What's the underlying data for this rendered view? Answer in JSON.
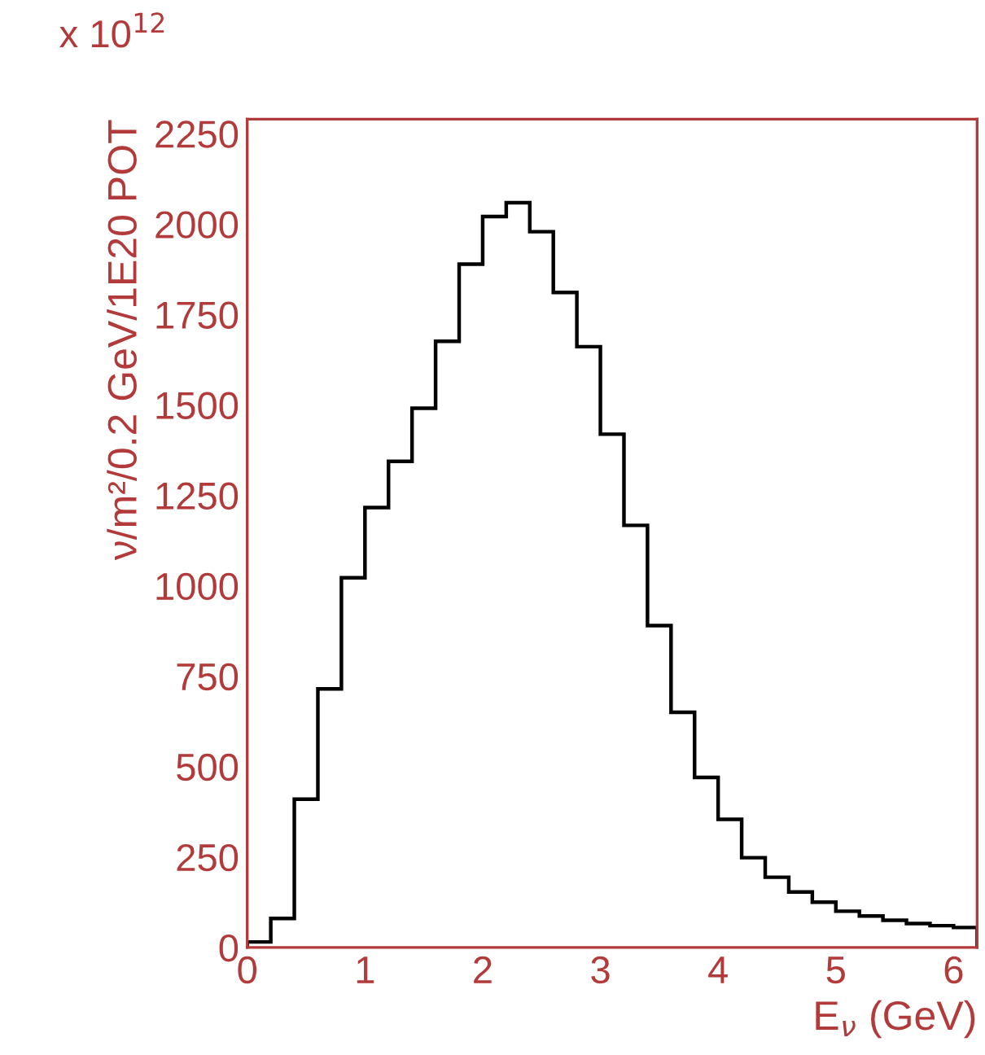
{
  "chart_data": {
    "type": "histogram",
    "bins": [
      0,
      0.2,
      0.4,
      0.6,
      0.8,
      1.0,
      1.2,
      1.4,
      1.6,
      1.8,
      2.0,
      2.2,
      2.4,
      2.6,
      2.8,
      3.0,
      3.2,
      3.4,
      3.6,
      3.8,
      4.0,
      4.2,
      4.4,
      4.6,
      4.8,
      5.0,
      5.2,
      5.4,
      5.6,
      5.8,
      6.0,
      6.2
    ],
    "values": [
      15,
      80,
      410,
      715,
      1022,
      1216,
      1344,
      1491,
      1676,
      1889,
      2021,
      2059,
      1979,
      1811,
      1661,
      1419,
      1167,
      890,
      650,
      470,
      354,
      248,
      194,
      153,
      125,
      100,
      87,
      75,
      66,
      60,
      55
    ],
    "color": "#000000",
    "xlabel": "E$_{ν}$ (GeV)",
    "ylabel": "ν/m²/0.2 GeV/1E20 POT",
    "annotations": [
      "x 10$^{12}$"
    ],
    "xlim": [
      0,
      6.2
    ],
    "ylim": [
      0,
      2290
    ],
    "xticks": [
      0,
      1,
      2,
      3,
      4,
      5,
      6
    ],
    "yticks": [
      0,
      250,
      500,
      750,
      1000,
      1250,
      1500,
      1750,
      2000,
      2250
    ],
    "grid": false,
    "legend": false
  }
}
